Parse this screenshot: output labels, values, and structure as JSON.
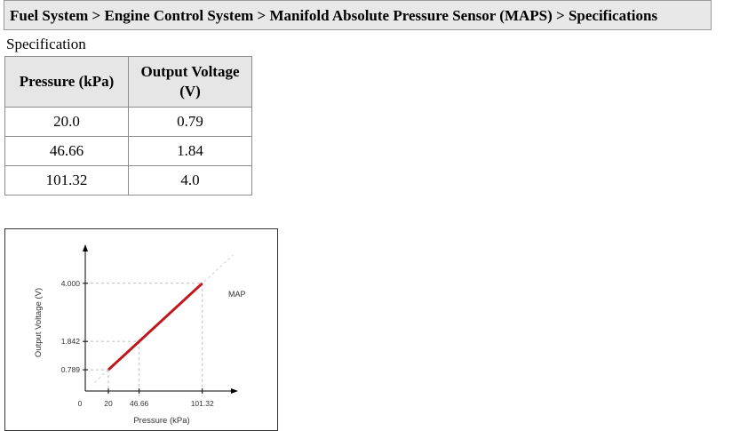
{
  "breadcrumb": {
    "text": "Fuel System > Engine Control System > Manifold Absolute Pressure Sensor (MAPS) > Specifications"
  },
  "section_label": "Specification",
  "table": {
    "headers": [
      "Pressure (kPa)",
      "Output Voltage (V)"
    ],
    "rows": [
      [
        "20.0",
        "0.79"
      ],
      [
        "46.66",
        "1.84"
      ],
      [
        "101.32",
        "4.0"
      ]
    ]
  },
  "chart_data": {
    "type": "line",
    "series": [
      {
        "name": "MAP",
        "x": [
          20,
          101.32
        ],
        "y": [
          0.789,
          4.0
        ],
        "color": "#c0161e"
      }
    ],
    "reference_points": [
      {
        "x": 20,
        "y": 0.789
      },
      {
        "x": 46.66,
        "y": 1.842
      },
      {
        "x": 101.32,
        "y": 4.0
      }
    ],
    "xticks": [
      "0",
      "20",
      "46.66",
      "101.32"
    ],
    "yticks": [
      "0.789",
      "1.842",
      "4.000"
    ],
    "xlabel": "Pressure (kPa)",
    "ylabel": "Output Voltage (V)",
    "xlim": [
      0,
      130
    ],
    "ylim": [
      0,
      5.2
    ],
    "grid": false
  }
}
